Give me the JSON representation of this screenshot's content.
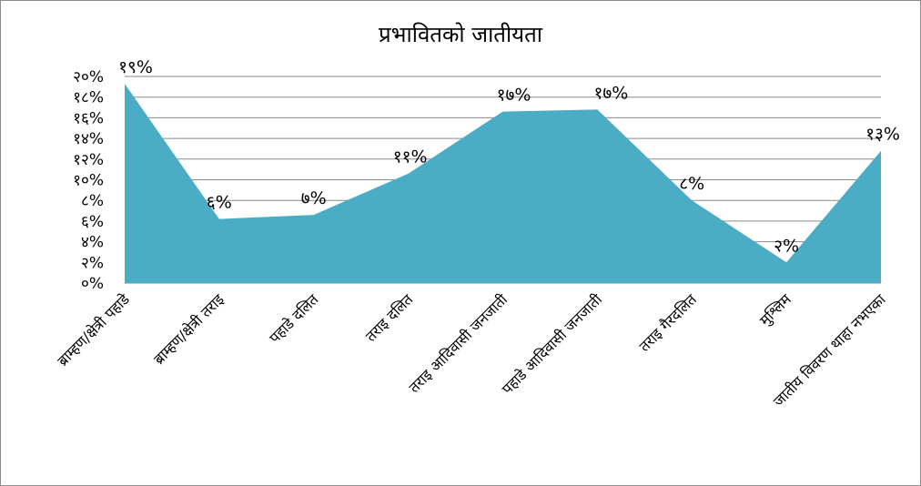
{
  "chart_data": {
    "type": "area",
    "title": "प्रभावितको जातीयता",
    "categories": [
      "ब्राम्हण/क्षेत्री पहाडे",
      "ब्राम्हण/क्षेत्री तराइ",
      "पहाडे दलित",
      "तराइ दलित",
      "तराइ आदिवासी जनजाती",
      "पहाडे आदिवासी जनजाती",
      "तराइ गैरदलित",
      "मुश्लिम",
      "जातीय विवरण थाहा नभएका"
    ],
    "values": [
      19,
      6,
      7,
      11,
      17,
      17,
      8,
      2,
      13
    ],
    "plotted_values": [
      19.3,
      6.2,
      6.6,
      10.6,
      16.6,
      16.8,
      8.0,
      2.0,
      12.8
    ],
    "data_labels": [
      "१९%",
      "६%",
      "७%",
      "११%",
      "१७%",
      "१७%",
      "८%",
      "२%",
      "१३%"
    ],
    "y_tick_labels": [
      "०%",
      "२%",
      "४%",
      "६%",
      "८%",
      "१०%",
      "१२%",
      "१४%",
      "१६%",
      "१८%",
      "२०%"
    ],
    "ylim": [
      0,
      20
    ],
    "ylabel": "",
    "xlabel": "",
    "grid": true,
    "legend": "none",
    "colors": {
      "area": "#4bacc6",
      "grid": "#8a8a8a",
      "border": "#8c8c8c"
    }
  }
}
